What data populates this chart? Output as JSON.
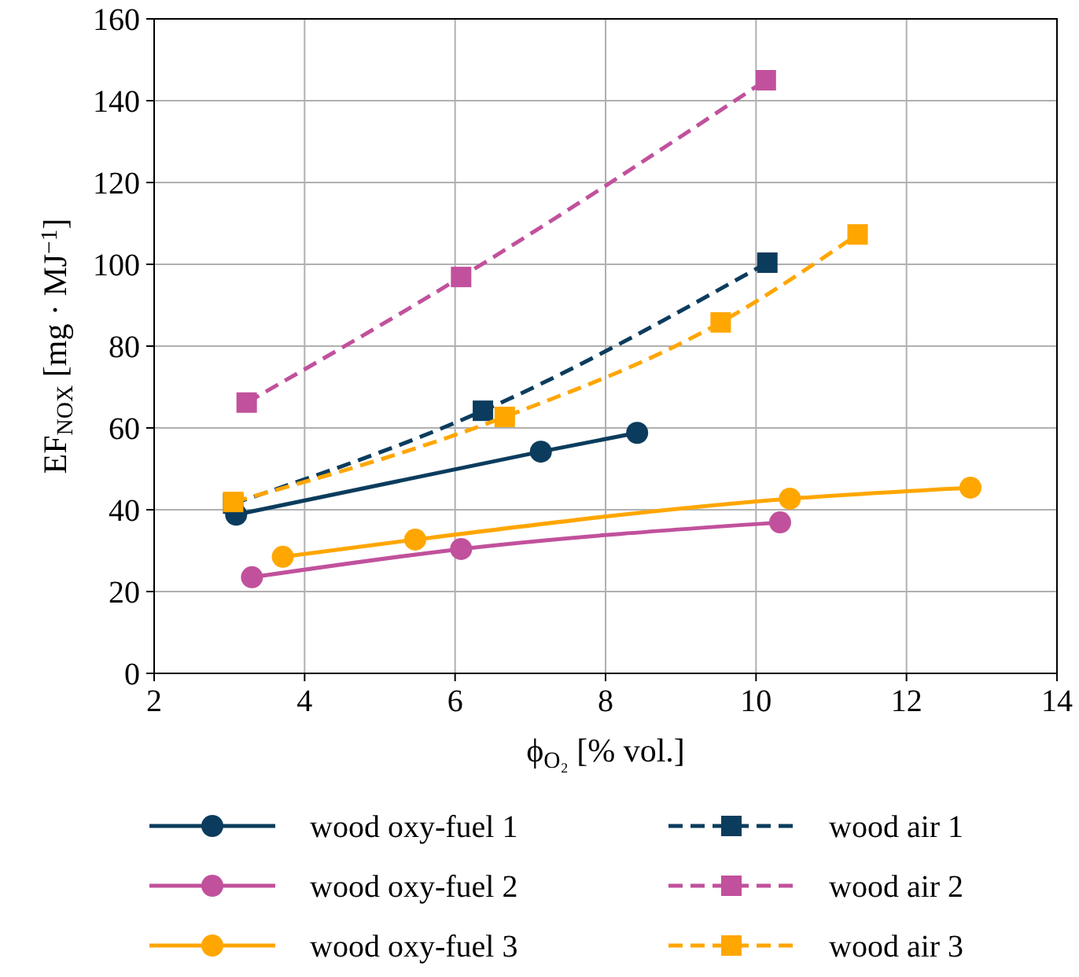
{
  "chart_data": {
    "type": "line",
    "xlabel": "ϕ$_{O₂}$ [% vol.]",
    "ylabel": "EF$_{NOX}$ [mg · MJ$^{−1}$]",
    "xlim": [
      2,
      14
    ],
    "xticks": [
      2,
      4,
      6,
      8,
      10,
      12,
      14
    ],
    "ylim": [
      0,
      160
    ],
    "yticks": [
      0,
      20,
      40,
      60,
      80,
      100,
      120,
      140,
      160
    ],
    "grid": true,
    "legend": "bottom",
    "series": [
      {
        "name": "wood oxy-fuel 1",
        "color": "#0b3c5d",
        "marker": "circle",
        "line_style": "solid",
        "x": [
          3.09,
          7.14,
          8.42
        ],
        "values": [
          38.8,
          54.2,
          58.8
        ]
      },
      {
        "name": "wood oxy-fuel 2",
        "color": "#c1519c",
        "marker": "circle",
        "line_style": "solid",
        "x": [
          3.3,
          6.08,
          10.32
        ],
        "values": [
          23.5,
          30.4,
          36.9
        ]
      },
      {
        "name": "wood oxy-fuel 3",
        "color": "#ffa600",
        "marker": "circle",
        "line_style": "solid",
        "x": [
          3.71,
          5.47,
          10.45,
          12.85
        ],
        "values": [
          28.5,
          32.7,
          42.7,
          45.4
        ]
      },
      {
        "name": "wood air 1",
        "color": "#0b3c5d",
        "marker": "square",
        "line_style": "dashed",
        "x": [
          3.05,
          6.37,
          10.15
        ],
        "values": [
          41.5,
          64.2,
          100.4
        ]
      },
      {
        "name": "wood air 2",
        "color": "#c1519c",
        "marker": "square",
        "line_style": "dashed",
        "x": [
          3.23,
          6.08,
          10.13
        ],
        "values": [
          66.2,
          96.9,
          145
        ]
      },
      {
        "name": "wood air 3",
        "color": "#ffa600",
        "marker": "square",
        "line_style": "dashed",
        "x": [
          3.05,
          6.66,
          9.53,
          11.35
        ],
        "values": [
          41.9,
          62.7,
          85.8,
          107.3
        ]
      }
    ]
  }
}
